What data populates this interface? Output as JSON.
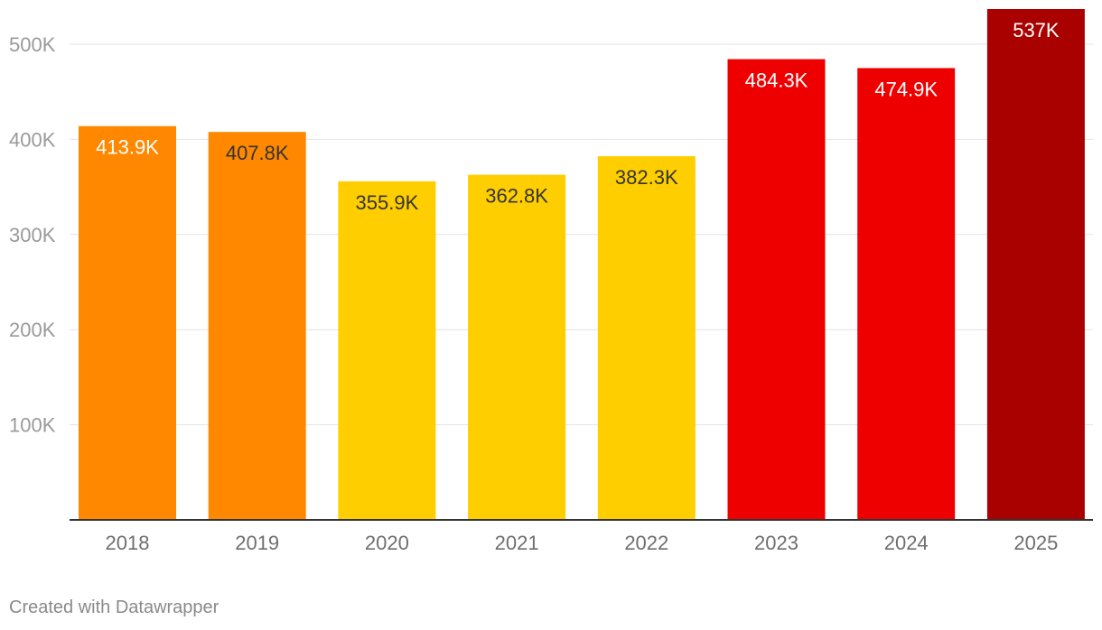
{
  "chart_data": {
    "type": "bar",
    "title": "",
    "xlabel": "",
    "ylabel": "",
    "ylim": [
      0,
      537
    ],
    "categories": [
      "2018",
      "2019",
      "2020",
      "2021",
      "2022",
      "2023",
      "2024",
      "2025"
    ],
    "values": [
      413.9,
      407.8,
      355.9,
      362.8,
      382.3,
      484.3,
      474.9,
      537
    ],
    "data_labels": [
      "413.9K",
      "407.8K",
      "355.9K",
      "362.8K",
      "382.3K",
      "484.3K",
      "474.9K",
      "537K"
    ],
    "bar_colors": [
      "#ff8800",
      "#ff8800",
      "#ffce00",
      "#ffce00",
      "#ffce00",
      "#ee0000",
      "#ee0000",
      "#a90000"
    ],
    "label_colors": [
      "#ffffff",
      "#333333",
      "#333333",
      "#333333",
      "#333333",
      "#ffffff",
      "#ffffff",
      "#ffffff"
    ],
    "y_ticks": [
      {
        "value": 100,
        "label": "100K"
      },
      {
        "value": 200,
        "label": "200K"
      },
      {
        "value": 300,
        "label": "300K"
      },
      {
        "value": 400,
        "label": "400K"
      },
      {
        "value": 500,
        "label": "500K"
      }
    ],
    "grid": true
  },
  "footer": {
    "credit": "Created with Datawrapper"
  }
}
